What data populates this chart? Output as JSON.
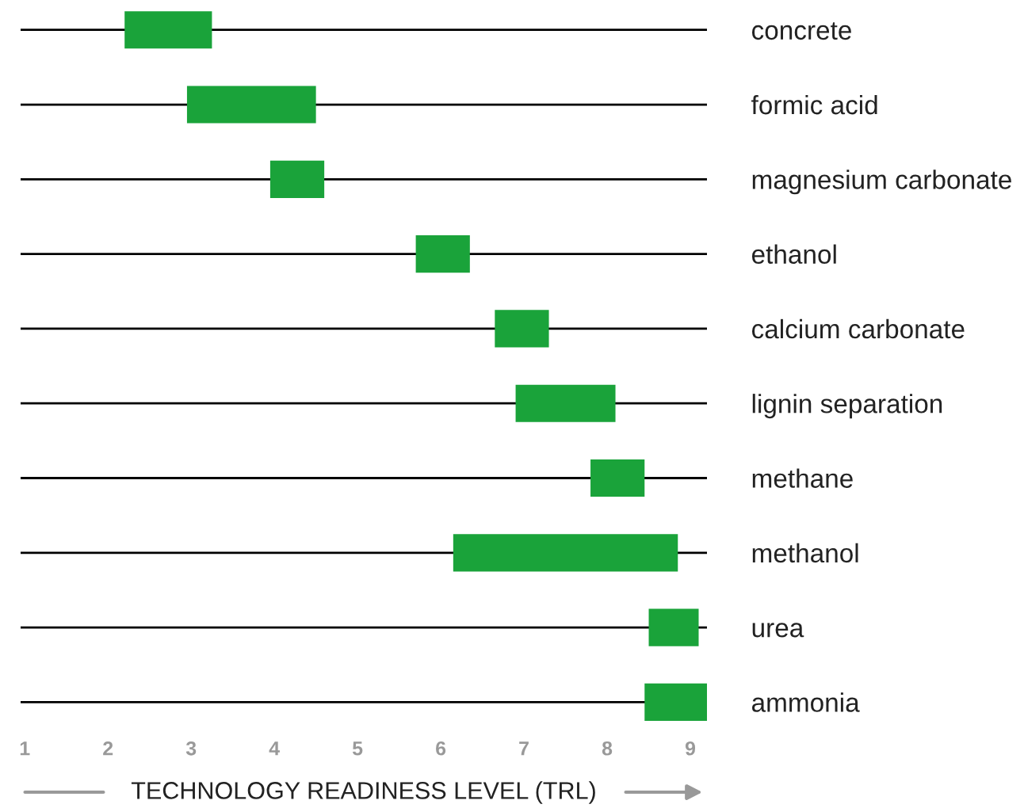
{
  "chart_data": {
    "type": "bar",
    "orientation": "horizontal",
    "xlabel": "TECHNOLOGY READINESS LEVEL (TRL)",
    "categories": [
      "concrete",
      "formic acid",
      "magnesium carbonate",
      "ethanol",
      "calcium carbonate",
      "lignin separation",
      "methane",
      "methanol",
      "urea",
      "ammonia"
    ],
    "base": [
      2.2,
      2.95,
      3.95,
      5.7,
      6.65,
      6.9,
      7.8,
      6.15,
      8.5,
      8.45
    ],
    "values": [
      1.05,
      1.55,
      0.65,
      0.65,
      0.65,
      1.2,
      0.65,
      2.7,
      0.6,
      0.75
    ],
    "color": "#1aa33a",
    "xlim": [
      0.95,
      9.2
    ],
    "xticks": [
      1,
      2,
      3,
      4,
      5,
      6,
      7,
      8,
      9
    ],
    "grid": "y"
  }
}
